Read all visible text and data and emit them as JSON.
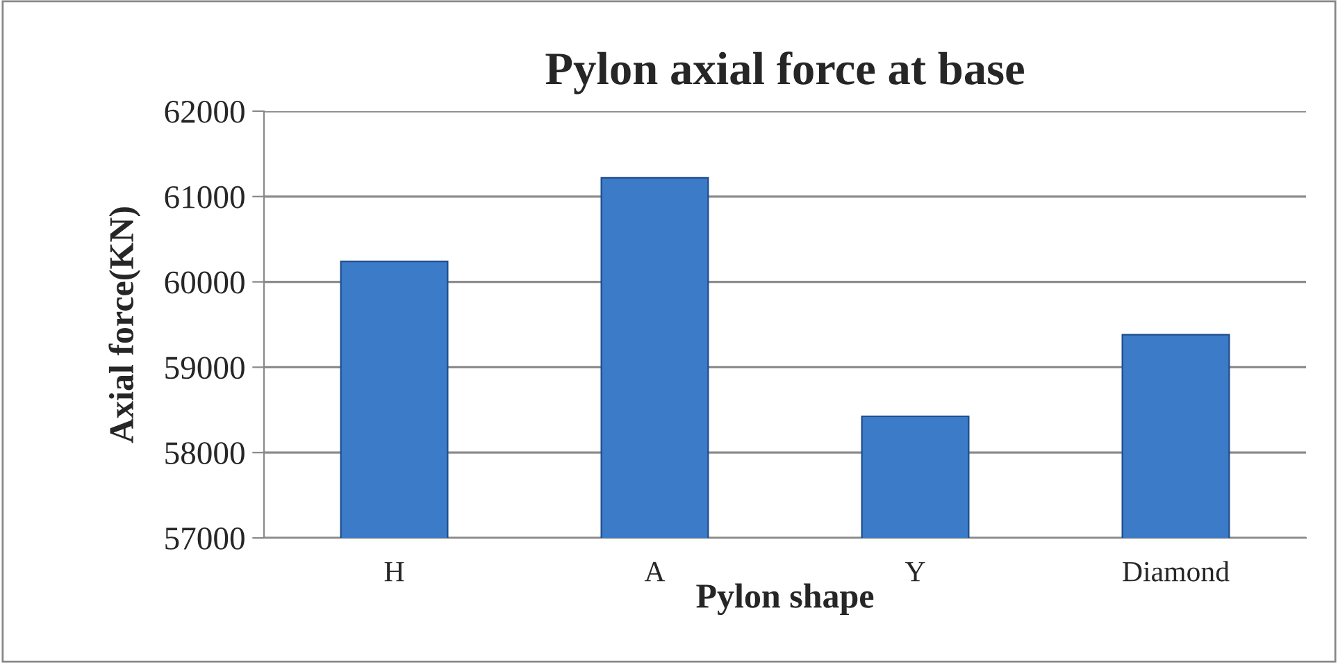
{
  "chart_data": {
    "type": "bar",
    "title": "Pylon axial force at base",
    "xlabel": "Pylon shape",
    "ylabel": "Axial force(KN)",
    "categories": [
      "H",
      "A",
      "Y",
      "Diamond"
    ],
    "values": [
      60240,
      61220,
      58425,
      59380
    ],
    "color": "#3b7bc8",
    "ylim": [
      57000,
      62000
    ],
    "yticks": [
      57000,
      58000,
      59000,
      60000,
      61000,
      62000
    ],
    "grid": "y"
  }
}
